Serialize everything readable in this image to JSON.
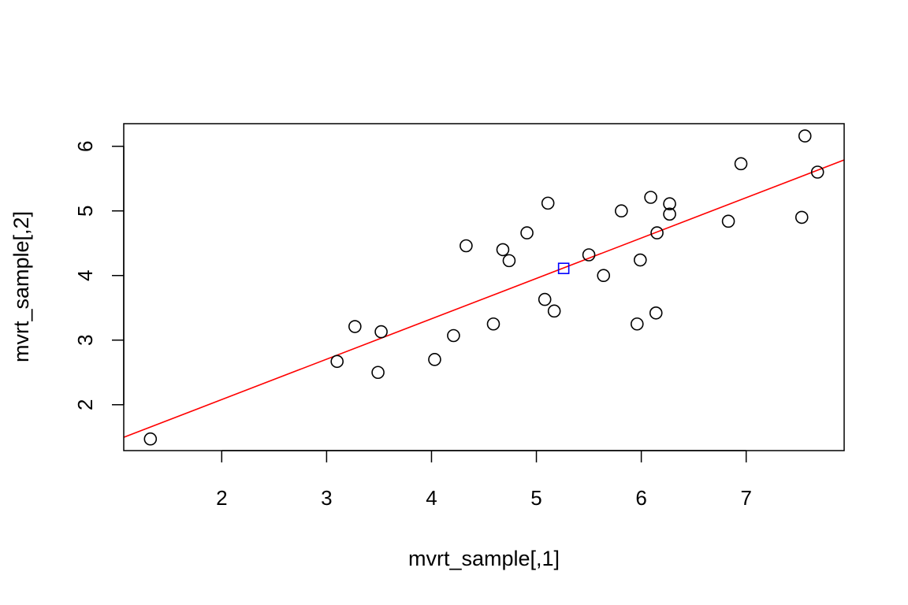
{
  "chart_data": {
    "type": "scatter",
    "xlabel": "mvrt_sample[,1]",
    "ylabel": "mvrt_sample[,2]",
    "xlim": [
      1.066,
      7.934
    ],
    "ylim": [
      1.29,
      6.35
    ],
    "x_ticks": [
      2,
      3,
      4,
      5,
      6,
      7
    ],
    "y_ticks": [
      2,
      3,
      4,
      5,
      6
    ],
    "grid": false,
    "points": [
      {
        "x": 1.32,
        "y": 1.47
      },
      {
        "x": 3.1,
        "y": 2.67
      },
      {
        "x": 3.27,
        "y": 3.21
      },
      {
        "x": 3.49,
        "y": 2.5
      },
      {
        "x": 3.52,
        "y": 3.13
      },
      {
        "x": 4.03,
        "y": 2.7
      },
      {
        "x": 4.21,
        "y": 3.07
      },
      {
        "x": 4.33,
        "y": 4.46
      },
      {
        "x": 4.59,
        "y": 3.25
      },
      {
        "x": 4.68,
        "y": 4.4
      },
      {
        "x": 4.74,
        "y": 4.23
      },
      {
        "x": 4.91,
        "y": 4.66
      },
      {
        "x": 5.08,
        "y": 3.63
      },
      {
        "x": 5.11,
        "y": 5.12
      },
      {
        "x": 5.17,
        "y": 3.45
      },
      {
        "x": 5.5,
        "y": 4.32
      },
      {
        "x": 5.64,
        "y": 4.0
      },
      {
        "x": 5.81,
        "y": 5.0
      },
      {
        "x": 5.96,
        "y": 3.25
      },
      {
        "x": 5.99,
        "y": 4.24
      },
      {
        "x": 6.09,
        "y": 5.21
      },
      {
        "x": 6.14,
        "y": 3.42
      },
      {
        "x": 6.15,
        "y": 4.66
      },
      {
        "x": 6.27,
        "y": 5.11
      },
      {
        "x": 6.27,
        "y": 4.95
      },
      {
        "x": 6.83,
        "y": 4.84
      },
      {
        "x": 6.95,
        "y": 5.73
      },
      {
        "x": 7.53,
        "y": 4.9
      },
      {
        "x": 7.56,
        "y": 6.16
      },
      {
        "x": 7.68,
        "y": 5.6
      }
    ],
    "mean_point": {
      "x": 5.26,
      "y": 4.11
    },
    "regression_line": {
      "intercept": 0.83,
      "slope": 0.625
    },
    "colors": {
      "points": "#000000",
      "mean_point": "#0000ff",
      "regression_line": "#ff0000",
      "frame": "#000000"
    }
  }
}
